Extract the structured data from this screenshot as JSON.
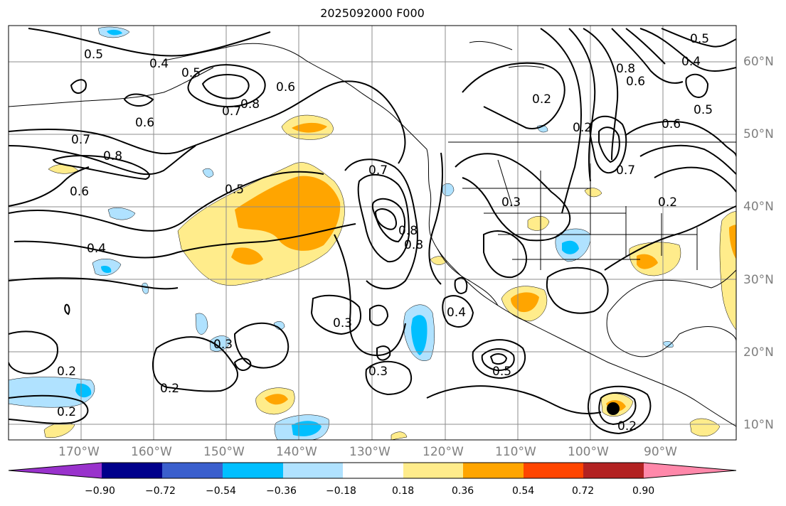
{
  "title": "2025092000 F000",
  "lat_labels": [
    "60°N",
    "50°N",
    "40°N",
    "30°N",
    "20°N",
    "10°N"
  ],
  "lon_labels": [
    "170°W",
    "160°W",
    "150°W",
    "140°W",
    "130°W",
    "120°W",
    "110°W",
    "100°W",
    "90°W"
  ],
  "colorbar": {
    "colors": [
      "#9932cc",
      "#00008b",
      "#3a5fcd",
      "#00bfff",
      "#b0e2ff",
      "#ffffff",
      "#ffec8b",
      "#ffa500",
      "#ff4500",
      "#b22222",
      "#ff88aa"
    ],
    "ticks": [
      "−0.90",
      "−0.72",
      "−0.54",
      "−0.36",
      "−0.18",
      "0.18",
      "0.36",
      "0.54",
      "0.72",
      "0.90"
    ]
  },
  "contour_labels": [
    "0.5",
    "0.4",
    "0.5",
    "0.6",
    "0.7",
    "0.8",
    "0.6",
    "0.7",
    "0.8",
    "0.6",
    "0.5",
    "0.4",
    "0.7",
    "0.8",
    "0.8",
    "0.3",
    "0.2",
    "0.2",
    "0.2",
    "0.3",
    "0.3",
    "0.4",
    "0.3",
    "0.5",
    "0.2",
    "0.2",
    "0.8",
    "0.4",
    "0.2",
    "0.7",
    "0.6",
    "0.5",
    "0.2",
    "0.5",
    "0.6"
  ]
}
